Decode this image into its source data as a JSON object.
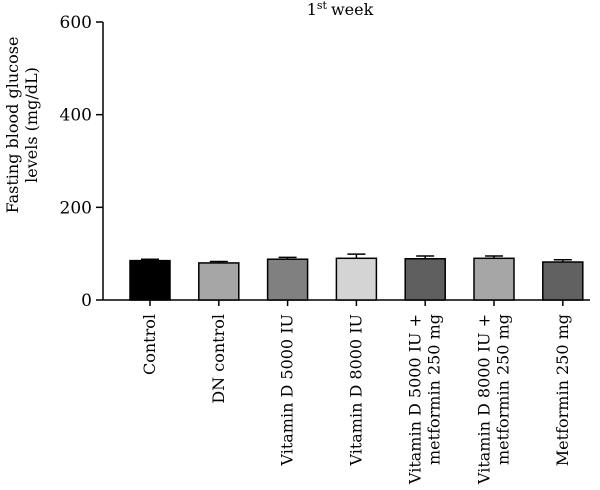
{
  "chart_data": {
    "type": "bar",
    "title": "week",
    "title_prefix": "1",
    "title_sup": "st",
    "ylabel_lines": [
      "Fasting blood glucose",
      "levels (mg/dL)"
    ],
    "ylim": [
      0,
      600
    ],
    "yticks": [
      0,
      200,
      400,
      600
    ],
    "categories": [
      [
        "Control"
      ],
      [
        "DN control"
      ],
      [
        "Vitamin D 5000 IU"
      ],
      [
        "Vitamin D 8000 IU"
      ],
      [
        "Vitamin D 5000 IU +",
        "metformin 250 mg"
      ],
      [
        "Vitamin D 8000 IU +",
        "metformin 250 mg"
      ],
      [
        "Metformin 250 mg"
      ]
    ],
    "values": [
      85,
      80,
      88,
      90,
      89,
      90,
      82
    ],
    "errors": [
      3,
      3,
      4,
      9,
      6,
      5,
      5
    ],
    "colors": [
      "#000000",
      "#a6a6a6",
      "#808080",
      "#d4d4d4",
      "#5f5f5f",
      "#a6a6a6",
      "#616161"
    ],
    "grid": false,
    "legend": "none"
  }
}
